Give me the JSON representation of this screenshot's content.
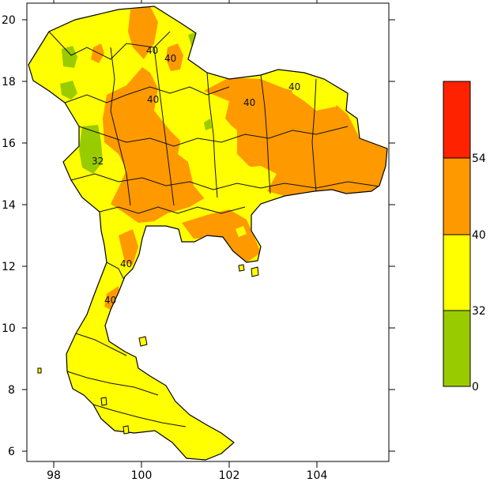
{
  "map": {
    "x_ticks": [
      "98",
      "100",
      "102",
      "104"
    ],
    "y_ticks": [
      "20",
      "18",
      "16",
      "14",
      "12",
      "10",
      "8",
      "6"
    ],
    "contour_labels": [
      "40",
      "40",
      "40",
      "40",
      "40",
      "32",
      "40",
      "40"
    ]
  },
  "legend": {
    "levels": [
      "0",
      "32",
      "40",
      "54"
    ],
    "colors": [
      "#99cc00",
      "#ffff00",
      "#ff9900",
      "#ff2200"
    ]
  }
}
